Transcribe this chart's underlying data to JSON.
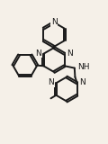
{
  "bg_color": "#f5f0e8",
  "bond_color": "#1a1a1a",
  "lw": 1.4,
  "fs": 6.5,
  "fig_w": 1.2,
  "fig_h": 1.6,
  "dpi": 100,
  "xlim": [
    0.0,
    1.0
  ],
  "ylim": [
    0.0,
    1.0
  ]
}
